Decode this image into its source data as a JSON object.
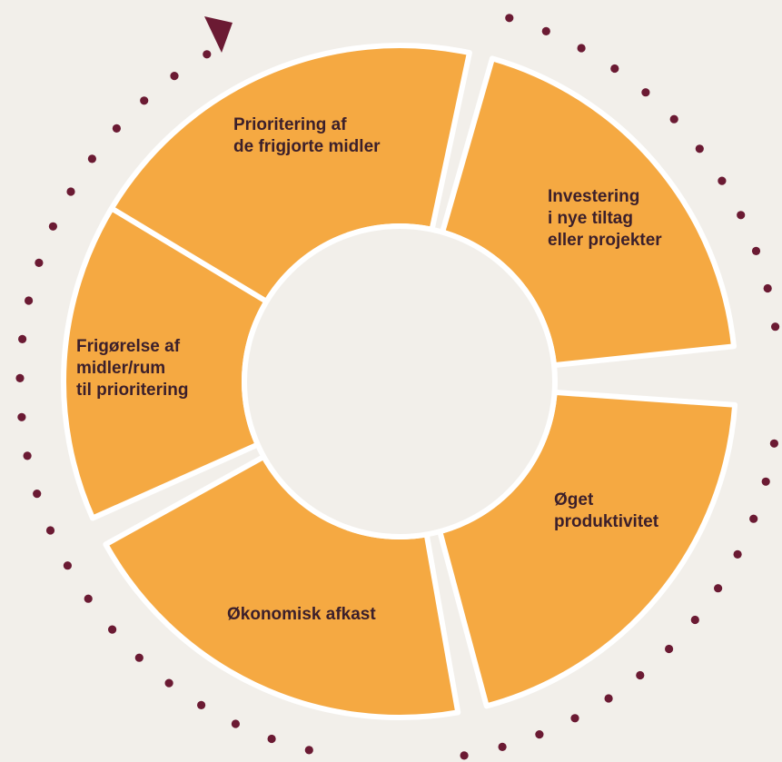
{
  "diagram": {
    "segments": [
      {
        "id": "prioritering",
        "label": "Prioritering af\nde frigjorte midler"
      },
      {
        "id": "investering",
        "label": "Investering\ni nye tiltag\neller projekter"
      },
      {
        "id": "produktivitet",
        "label": "Øget\nproduktivitet"
      },
      {
        "id": "afkast",
        "label": "Økonomisk afkast"
      },
      {
        "id": "frigoerelse",
        "label": "Frigørelse af\nmidler/rum\ntil prioritering"
      }
    ],
    "colors": {
      "background": "#f2efea",
      "segment_fill": "#f5a942",
      "segment_border": "#ffffff",
      "dots": "#6b1a33",
      "arrow": "#6b1a33"
    }
  }
}
